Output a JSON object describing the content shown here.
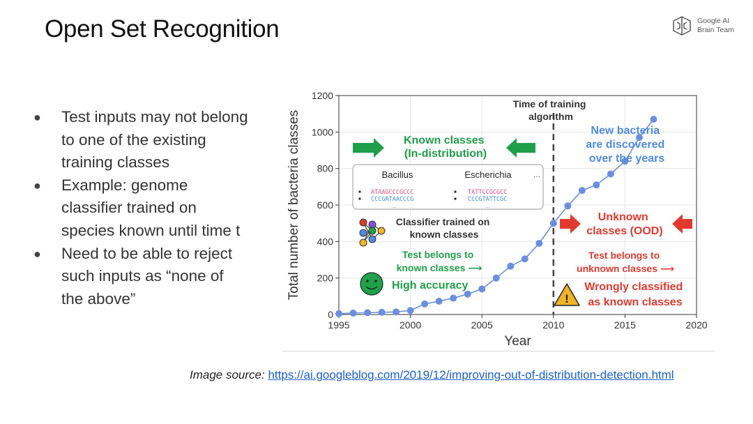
{
  "slide": {
    "title": "Open Set Recognition",
    "logo_line1": "Google AI",
    "logo_line2": "Brain Team",
    "bullet_marker": "●",
    "bullets": [
      [
        "Test inputs may not belong",
        "to one of the existing",
        "training classes"
      ],
      [
        "Example: genome",
        "classifier trained on",
        "species known until time t"
      ],
      [
        "Need to be able to reject",
        "such inputs as “none of",
        "the above”"
      ]
    ],
    "source_label": "Image source:",
    "source_url": "https://ai.googleblog.com/2019/12/improving-out-of-distribution-detection.html"
  },
  "colors": {
    "green": "#1f9e4a",
    "blue": "#4f8be0",
    "red": "#e03a2e",
    "line": "#6b8fde",
    "dark": "#333333"
  },
  "chart_data": {
    "type": "line",
    "xlabel": "Year",
    "ylabel": "Total number of bacteria classes",
    "xlim": [
      1995,
      2020
    ],
    "ylim": [
      0,
      1200
    ],
    "xticks": [
      1995,
      2000,
      2005,
      2010,
      2015,
      2020
    ],
    "yticks": [
      0,
      200,
      400,
      600,
      800,
      1000,
      1200
    ],
    "grid": true,
    "series": [
      {
        "x": [
          1995,
          1996,
          1997,
          1998,
          1999,
          2000,
          2001,
          2002,
          2003,
          2004,
          2005,
          2006,
          2007,
          2008,
          2009,
          2010,
          2011,
          2012,
          2013,
          2014,
          2015,
          2016,
          2017
        ],
        "y": [
          5,
          8,
          10,
          12,
          14,
          22,
          58,
          73,
          90,
          112,
          140,
          200,
          265,
          305,
          390,
          500,
          595,
          680,
          710,
          770,
          840,
          970,
          1070
        ]
      }
    ],
    "vline_x": 2010,
    "annotations": {
      "time_of_training": [
        "Time of training",
        "algorithm"
      ],
      "known_classes": [
        "Known classes",
        "(In-distribution)"
      ],
      "new_bacteria": [
        "New bacteria",
        "are discovered",
        "over the years"
      ],
      "genus_a": "Bacillus",
      "genus_b": "Escherichia",
      "genus_more": "...",
      "seq_a1": "ATAAGCCCGCCC",
      "seq_a2": "CCCGATAACCCG",
      "seq_b1": "TATTCCGCGCC",
      "seq_b2": "CCCGTATTCGC",
      "seq_ellipsis": "...",
      "classifier": [
        "Classifier trained on",
        "known classes"
      ],
      "test_known": [
        "Test belongs to",
        "known classes ⟶"
      ],
      "high_accuracy": "High accuracy",
      "unknown_classes": [
        "Unknown",
        "classes (OOD)"
      ],
      "test_unknown": [
        "Test belongs to",
        "unknown classes ⟶"
      ],
      "wrongly": [
        "Wrongly classified",
        "as known classes"
      ],
      "warning_glyph": "!"
    }
  }
}
